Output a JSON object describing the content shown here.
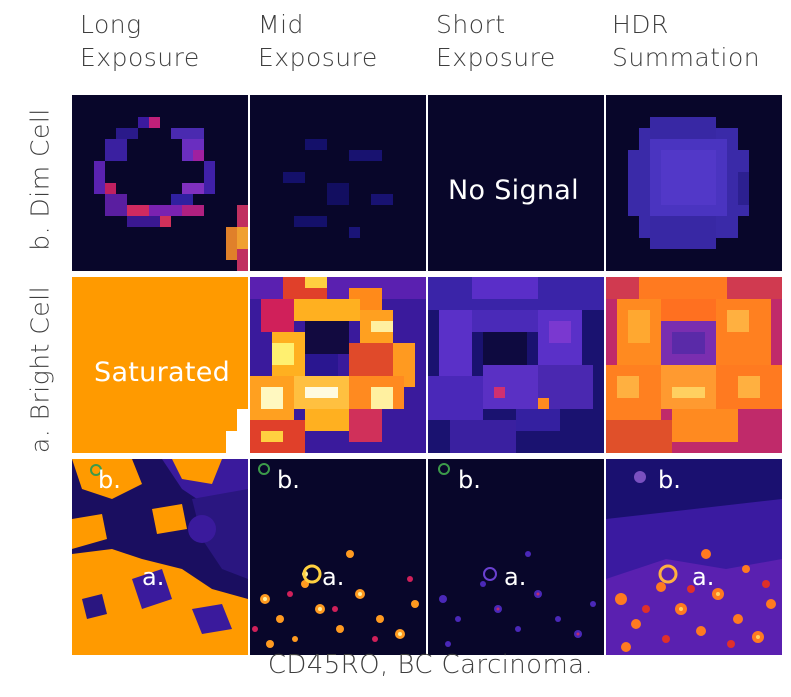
{
  "columns": [
    {
      "line1": "Long",
      "line2": "Exposure"
    },
    {
      "line1": "Mid",
      "line2": "Exposure"
    },
    {
      "line1": "Short",
      "line2": "Exposure"
    },
    {
      "line1": "HDR",
      "line2": "Summation"
    }
  ],
  "rows": {
    "dim": "b. Dim Cell",
    "bright": "a. Bright Cell"
  },
  "overlays": {
    "no_signal": "No Signal",
    "saturated": "Saturated"
  },
  "roi_labels": {
    "a": "a.",
    "b": "b."
  },
  "caption": "CD45RO, BC Carcinoma.",
  "colors": {
    "background": "#08062a",
    "saturated": "#ff9a00",
    "separator": "#ffffff"
  }
}
